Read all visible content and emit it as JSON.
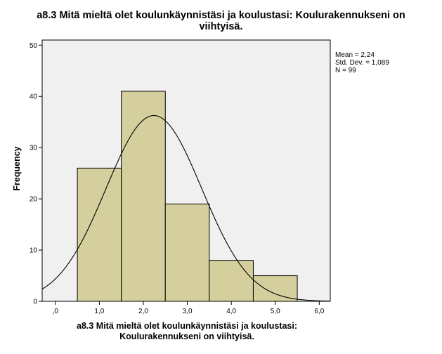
{
  "chart_data": {
    "type": "bar",
    "title_lines": [
      "a8.3 Mitä mieltä olet koulunkäynnistäsi ja koulustasi: Koulurakennukseni on",
      "viihtyisä."
    ],
    "xlabel_lines": [
      "a8.3 Mitä mieltä olet koulunkäynnistäsi ja koulustasi:",
      "Koulurakennukseni on viihtyisä."
    ],
    "ylabel": "Frequency",
    "bins": [
      {
        "from": 0.5,
        "to": 1.5,
        "value": 26
      },
      {
        "from": 1.5,
        "to": 2.5,
        "value": 41
      },
      {
        "from": 2.5,
        "to": 3.5,
        "value": 19
      },
      {
        "from": 3.5,
        "to": 4.5,
        "value": 8
      },
      {
        "from": 4.5,
        "to": 5.5,
        "value": 5
      }
    ],
    "normal_curve": {
      "mean": 2.24,
      "std_dev": 1.089,
      "n": 99,
      "bin_width": 1
    },
    "stats_text": [
      "Mean = 2,24",
      "Std. Dev. = 1,089",
      "N = 99"
    ],
    "xlim": [
      -0.3,
      6.25
    ],
    "ylim": [
      0,
      51
    ],
    "xticks": [
      0,
      1,
      2,
      3,
      4,
      5,
      6
    ],
    "xtick_labels": [
      ",0",
      "1,0",
      "2,0",
      "3,0",
      "4,0",
      "5,0",
      "6,0"
    ],
    "yticks": [
      0,
      10,
      20,
      30,
      40,
      50
    ],
    "ytick_labels": [
      "0",
      "10",
      "20",
      "30",
      "40",
      "50"
    ],
    "colors": {
      "bar_fill": "#d4cf9c",
      "plot_bg": "#f0f0f0",
      "outline": "#000000"
    }
  }
}
